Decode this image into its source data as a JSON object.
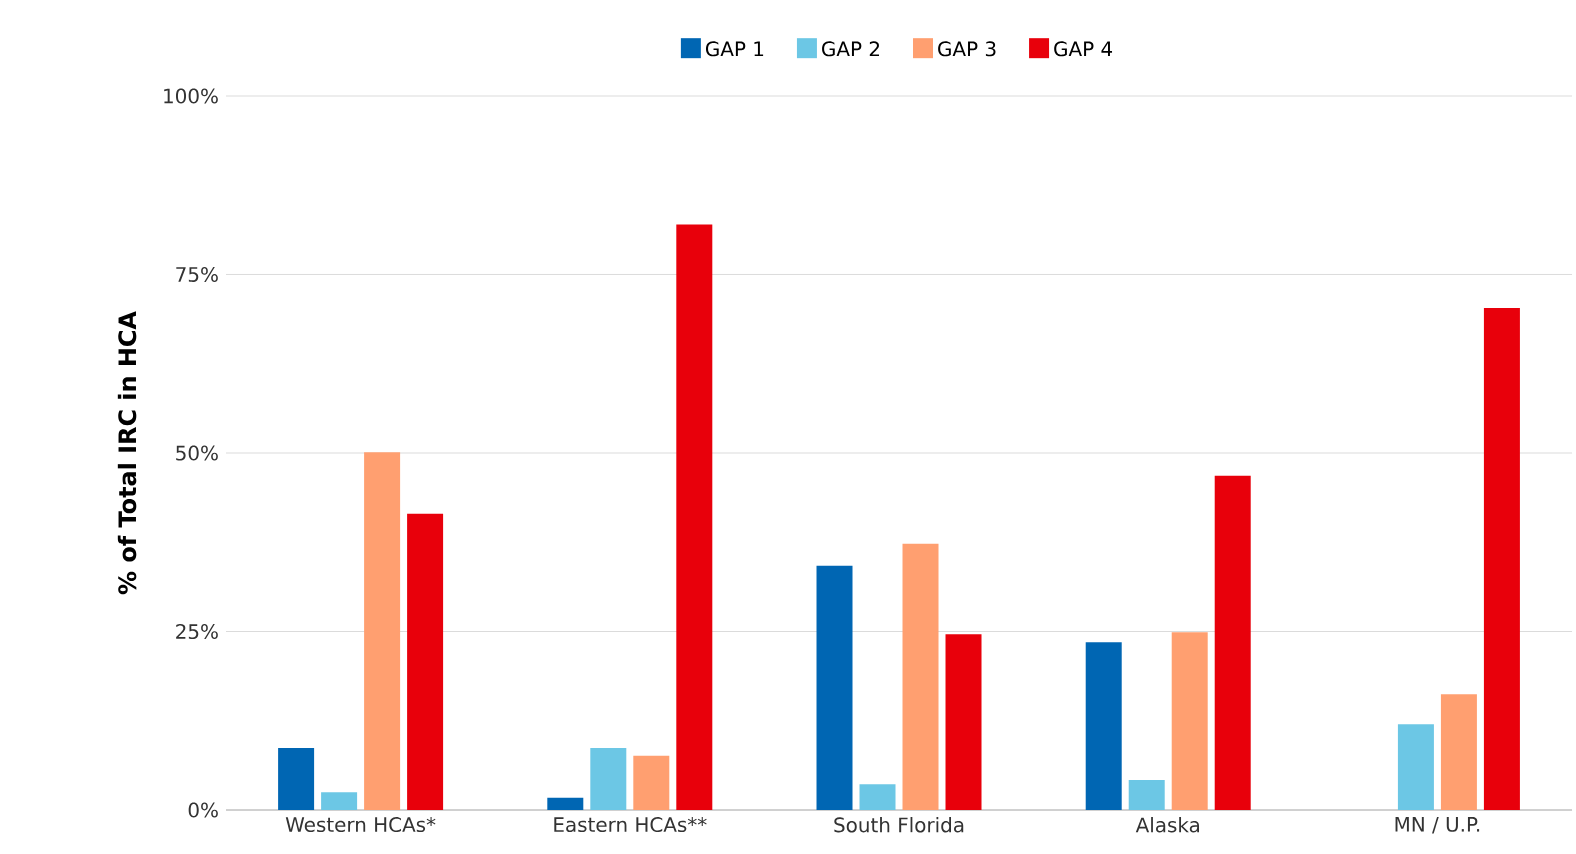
{
  "chart_data": {
    "type": "bar",
    "ylabel": "% of Total IRC in HCA",
    "categories": [
      "Western HCAs*",
      "Eastern HCAs**",
      "South Florida",
      "Alaska",
      "MN / U.P."
    ],
    "series": [
      {
        "name": "GAP 1",
        "color": "#0066b3",
        "values": [
          8.7,
          1.7,
          34.2,
          23.5,
          null
        ]
      },
      {
        "name": "GAP 2",
        "color": "#6cc7e5",
        "values": [
          2.5,
          8.7,
          3.6,
          4.2,
          12
        ]
      },
      {
        "name": "GAP 3",
        "color": "#ff9f70",
        "values": [
          50.1,
          7.6,
          37.3,
          24.9,
          16.2
        ]
      },
      {
        "name": "GAP 4",
        "color": "#e8000b",
        "values": [
          41.5,
          82,
          24.6,
          46.8,
          70.3
        ]
      }
    ],
    "ylim": [
      0,
      100
    ],
    "yticks": [
      {
        "value": 0,
        "label": "0%"
      },
      {
        "value": 25,
        "label": "25%"
      },
      {
        "value": 50,
        "label": "50%"
      },
      {
        "value": 75,
        "label": "75%"
      },
      {
        "value": 100,
        "label": "100%"
      }
    ],
    "grid": "y",
    "legend": "top"
  }
}
